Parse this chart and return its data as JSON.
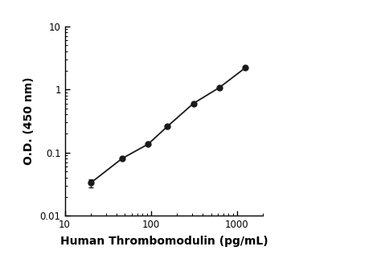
{
  "x": [
    20,
    46,
    93,
    156,
    312,
    625,
    1250
  ],
  "y": [
    0.033,
    0.08,
    0.136,
    0.26,
    0.6,
    1.07,
    2.2
  ],
  "yerr": [
    0.005,
    0,
    0,
    0,
    0,
    0,
    0
  ],
  "xlabel": "Human Thrombomodulin (pg/mL)",
  "ylabel": "O.D. (450 nm)",
  "xlim": [
    10,
    2000
  ],
  "ylim": [
    0.01,
    10
  ],
  "line_color": "#1a1a1a",
  "marker_color": "#1a1a1a",
  "marker_size": 5,
  "line_width": 1.3,
  "xlabel_fontsize": 10,
  "ylabel_fontsize": 10,
  "tick_fontsize": 8.5,
  "xlabel_bold": true,
  "ylabel_bold": true,
  "xticks": [
    10,
    100,
    1000
  ],
  "xticklabels": [
    "10",
    "100",
    "1000"
  ],
  "yticks": [
    0.01,
    0.1,
    1,
    10
  ],
  "yticklabels": [
    "0.01",
    "0.1",
    "1",
    "10"
  ]
}
